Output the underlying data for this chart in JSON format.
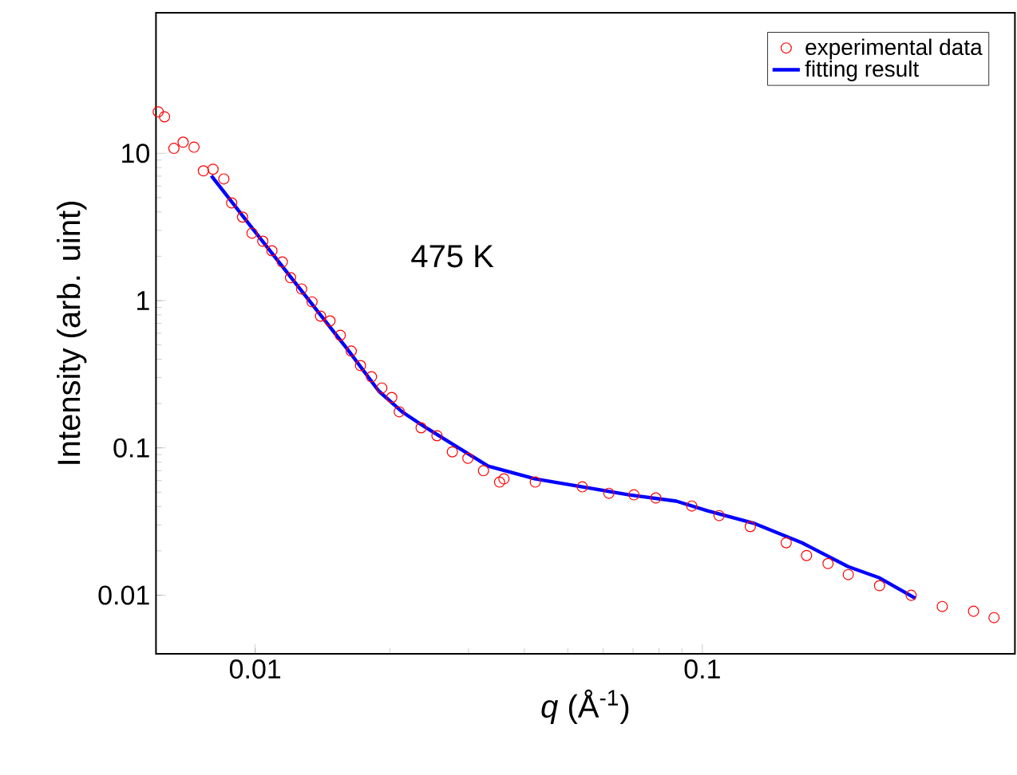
{
  "chart_data": {
    "type": "scatter",
    "xlabel": "*q* (Å$^{-1}$)",
    "ylabel": "Intensity (arb. uint)",
    "annotations": [
      "475 K"
    ],
    "log": "xy",
    "xlim": [
      0.006,
      0.5
    ],
    "ylim": [
      0.004,
      90
    ],
    "xticks": [
      0.01,
      0.1
    ],
    "yticks": [
      0.01,
      0.1,
      1,
      10
    ],
    "legend": "top right",
    "series": [
      {
        "name": "experimental data",
        "marker": "circle",
        "color": "#ff0000",
        "x": [
          0.00607,
          0.00627,
          0.00658,
          0.0069,
          0.0073,
          0.00766,
          0.00805,
          0.00851,
          0.00886,
          0.00937,
          0.00984,
          0.0104,
          0.0109,
          0.0115,
          0.012,
          0.0127,
          0.0134,
          0.014,
          0.0147,
          0.0155,
          0.0164,
          0.0172,
          0.0182,
          0.0192,
          0.0202,
          0.021,
          0.0235,
          0.0255,
          0.0276,
          0.0299,
          0.0324,
          0.0352,
          0.036,
          0.0423,
          0.0539,
          0.0618,
          0.0703,
          0.0787,
          0.0947,
          0.109,
          0.128,
          0.154,
          0.171,
          0.191,
          0.212,
          0.249,
          0.293,
          0.344,
          0.404,
          0.449
        ],
        "values": [
          19.1,
          17.7,
          10.8,
          11.9,
          11.0,
          7.6,
          7.8,
          6.7,
          4.6,
          3.69,
          2.87,
          2.53,
          2.18,
          1.83,
          1.43,
          1.2,
          0.98,
          0.785,
          0.728,
          0.582,
          0.454,
          0.362,
          0.304,
          0.255,
          0.22,
          0.176,
          0.137,
          0.121,
          0.094,
          0.085,
          0.07,
          0.0586,
          0.0616,
          0.0586,
          0.0544,
          0.0492,
          0.048,
          0.0457,
          0.0403,
          0.0347,
          0.0292,
          0.0227,
          0.0186,
          0.0164,
          0.0138,
          0.0116,
          0.00998,
          0.00838,
          0.00778,
          0.00704
        ]
      },
      {
        "name": "fitting result",
        "type": "line",
        "marker": "none",
        "color": "#0000ff",
        "x": [
          0.00798,
          0.00992,
          0.0126,
          0.0161,
          0.0189,
          0.0213,
          0.0241,
          0.0283,
          0.0332,
          0.0423,
          0.0539,
          0.0686,
          0.0874,
          0.1027,
          0.131,
          0.167,
          0.212,
          0.249,
          0.3
        ],
        "values": [
          7.05,
          3.02,
          1.2,
          0.465,
          0.243,
          0.176,
          0.137,
          0.1015,
          0.0752,
          0.0616,
          0.0544,
          0.048,
          0.0435,
          0.0374,
          0.0306,
          0.0227,
          0.0156,
          0.0131,
          0.0095
        ]
      }
    ]
  }
}
